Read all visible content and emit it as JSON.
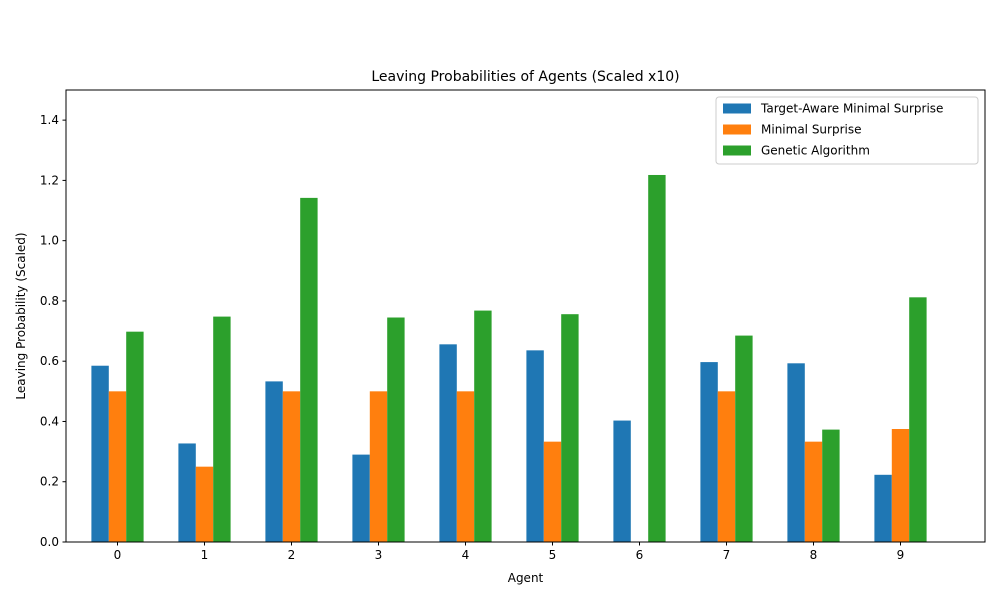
{
  "chart_data": {
    "type": "bar",
    "title": "Leaving Probabilities of Agents (Scaled x10)",
    "xlabel": "Agent",
    "ylabel": "Leaving Probability (Scaled)",
    "categories": [
      "0",
      "1",
      "2",
      "3",
      "4",
      "5",
      "6",
      "7",
      "8",
      "9"
    ],
    "ylim": [
      0,
      1.5
    ],
    "yticks": [
      "0.0",
      "0.2",
      "0.4",
      "0.6",
      "0.8",
      "1.0",
      "1.2",
      "1.4"
    ],
    "grid": false,
    "legend_position": "top-right",
    "series": [
      {
        "name": "Target-Aware Minimal Surprise",
        "color": "#1f77b4",
        "values": [
          0.585,
          0.327,
          0.533,
          0.29,
          0.656,
          0.636,
          0.403,
          0.597,
          0.593,
          0.223
        ]
      },
      {
        "name": "Minimal Surprise",
        "color": "#ff7f0e",
        "values": [
          0.5,
          0.25,
          0.5,
          0.5,
          0.5,
          0.333,
          0.0,
          0.5,
          0.333,
          0.375
        ]
      },
      {
        "name": "Genetic Algorithm",
        "color": "#2ca02c",
        "values": [
          0.698,
          0.748,
          1.142,
          0.745,
          0.768,
          0.756,
          1.218,
          0.685,
          0.373,
          0.812
        ]
      }
    ]
  }
}
